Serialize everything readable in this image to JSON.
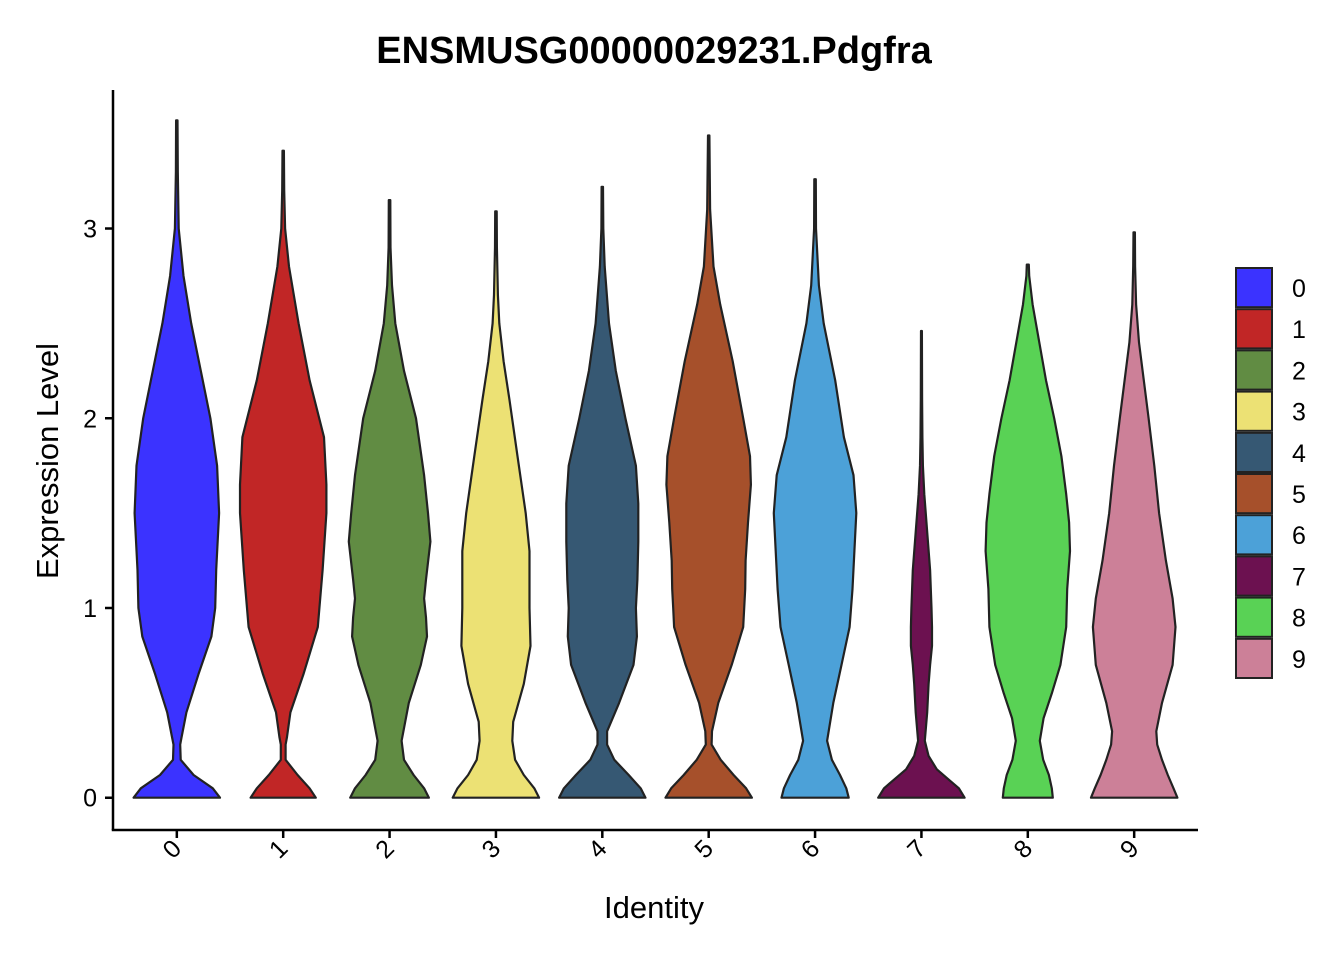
{
  "chart_data": {
    "type": "violin",
    "title": "ENSMUSG00000029231.Pdgfra",
    "xlabel": "Identity",
    "ylabel": "Expression Level",
    "ylim": [
      -0.17,
      3.73
    ],
    "yticks": [
      0,
      1,
      2,
      3
    ],
    "categories": [
      "0",
      "1",
      "2",
      "3",
      "4",
      "5",
      "6",
      "7",
      "8",
      "9"
    ],
    "colors": [
      "#3B33FF",
      "#C12626",
      "#618C43",
      "#ECE174",
      "#365873",
      "#A6502B",
      "#4CA1D8",
      "#6C1150",
      "#59D255",
      "#CC8098"
    ],
    "legend": {
      "title": "",
      "position": "right",
      "entries": [
        "0",
        "1",
        "2",
        "3",
        "4",
        "5",
        "6",
        "7",
        "8",
        "9"
      ]
    },
    "grid": false,
    "series": [
      {
        "max": 3.57,
        "profile": [
          [
            0,
            0.9
          ],
          [
            0.05,
            0.75
          ],
          [
            0.12,
            0.35
          ],
          [
            0.2,
            0.08
          ],
          [
            0.28,
            0.07
          ],
          [
            0.32,
            0.1
          ],
          [
            0.45,
            0.2
          ],
          [
            0.65,
            0.45
          ],
          [
            0.85,
            0.72
          ],
          [
            1.0,
            0.8
          ],
          [
            1.2,
            0.82
          ],
          [
            1.5,
            0.88
          ],
          [
            1.75,
            0.84
          ],
          [
            2.0,
            0.7
          ],
          [
            2.25,
            0.5
          ],
          [
            2.5,
            0.3
          ],
          [
            2.75,
            0.14
          ],
          [
            3.0,
            0.04
          ],
          [
            3.3,
            0.02
          ],
          [
            3.57,
            0.015
          ]
        ]
      },
      {
        "max": 3.41,
        "profile": [
          [
            0,
            0.68
          ],
          [
            0.05,
            0.55
          ],
          [
            0.12,
            0.3
          ],
          [
            0.2,
            0.05
          ],
          [
            0.28,
            0.05
          ],
          [
            0.32,
            0.08
          ],
          [
            0.45,
            0.15
          ],
          [
            0.65,
            0.42
          ],
          [
            0.9,
            0.72
          ],
          [
            1.2,
            0.82
          ],
          [
            1.5,
            0.9
          ],
          [
            1.65,
            0.9
          ],
          [
            1.9,
            0.85
          ],
          [
            2.2,
            0.55
          ],
          [
            2.5,
            0.32
          ],
          [
            2.8,
            0.12
          ],
          [
            3.0,
            0.04
          ],
          [
            3.2,
            0.02
          ],
          [
            3.41,
            0.015
          ]
        ]
      },
      {
        "max": 3.15,
        "profile": [
          [
            0,
            0.82
          ],
          [
            0.05,
            0.72
          ],
          [
            0.12,
            0.5
          ],
          [
            0.2,
            0.3
          ],
          [
            0.3,
            0.25
          ],
          [
            0.5,
            0.4
          ],
          [
            0.7,
            0.65
          ],
          [
            0.85,
            0.78
          ],
          [
            0.95,
            0.76
          ],
          [
            1.05,
            0.72
          ],
          [
            1.15,
            0.76
          ],
          [
            1.35,
            0.85
          ],
          [
            1.5,
            0.8
          ],
          [
            1.7,
            0.72
          ],
          [
            2.0,
            0.55
          ],
          [
            2.25,
            0.3
          ],
          [
            2.5,
            0.12
          ],
          [
            2.7,
            0.05
          ],
          [
            2.9,
            0.02
          ],
          [
            3.15,
            0.015
          ]
        ]
      },
      {
        "max": 3.09,
        "profile": [
          [
            0,
            0.9
          ],
          [
            0.05,
            0.8
          ],
          [
            0.12,
            0.58
          ],
          [
            0.2,
            0.4
          ],
          [
            0.3,
            0.34
          ],
          [
            0.4,
            0.36
          ],
          [
            0.6,
            0.58
          ],
          [
            0.8,
            0.72
          ],
          [
            1.0,
            0.7
          ],
          [
            1.3,
            0.7
          ],
          [
            1.5,
            0.62
          ],
          [
            1.8,
            0.45
          ],
          [
            2.1,
            0.28
          ],
          [
            2.3,
            0.16
          ],
          [
            2.5,
            0.07
          ],
          [
            2.65,
            0.04
          ],
          [
            2.9,
            0.02
          ],
          [
            3.09,
            0.015
          ]
        ]
      },
      {
        "max": 3.22,
        "profile": [
          [
            0,
            0.9
          ],
          [
            0.05,
            0.8
          ],
          [
            0.12,
            0.55
          ],
          [
            0.2,
            0.25
          ],
          [
            0.28,
            0.1
          ],
          [
            0.35,
            0.1
          ],
          [
            0.5,
            0.35
          ],
          [
            0.7,
            0.65
          ],
          [
            0.85,
            0.72
          ],
          [
            1.0,
            0.7
          ],
          [
            1.15,
            0.73
          ],
          [
            1.35,
            0.75
          ],
          [
            1.55,
            0.75
          ],
          [
            1.75,
            0.7
          ],
          [
            2.0,
            0.48
          ],
          [
            2.25,
            0.28
          ],
          [
            2.5,
            0.14
          ],
          [
            2.8,
            0.05
          ],
          [
            3.0,
            0.02
          ],
          [
            3.22,
            0.015
          ]
        ]
      },
      {
        "max": 3.49,
        "profile": [
          [
            0,
            0.9
          ],
          [
            0.05,
            0.78
          ],
          [
            0.12,
            0.52
          ],
          [
            0.2,
            0.25
          ],
          [
            0.28,
            0.06
          ],
          [
            0.35,
            0.07
          ],
          [
            0.5,
            0.2
          ],
          [
            0.7,
            0.48
          ],
          [
            0.9,
            0.72
          ],
          [
            1.0,
            0.74
          ],
          [
            1.1,
            0.76
          ],
          [
            1.25,
            0.77
          ],
          [
            1.45,
            0.82
          ],
          [
            1.65,
            0.88
          ],
          [
            1.8,
            0.86
          ],
          [
            2.0,
            0.72
          ],
          [
            2.3,
            0.5
          ],
          [
            2.6,
            0.24
          ],
          [
            2.8,
            0.1
          ],
          [
            3.1,
            0.03
          ],
          [
            3.49,
            0.015
          ]
        ]
      },
      {
        "max": 3.26,
        "profile": [
          [
            0,
            0.7
          ],
          [
            0.05,
            0.65
          ],
          [
            0.12,
            0.52
          ],
          [
            0.2,
            0.35
          ],
          [
            0.3,
            0.25
          ],
          [
            0.5,
            0.38
          ],
          [
            0.7,
            0.55
          ],
          [
            0.9,
            0.72
          ],
          [
            1.1,
            0.78
          ],
          [
            1.3,
            0.82
          ],
          [
            1.5,
            0.86
          ],
          [
            1.7,
            0.8
          ],
          [
            1.9,
            0.6
          ],
          [
            2.2,
            0.42
          ],
          [
            2.5,
            0.18
          ],
          [
            2.7,
            0.08
          ],
          [
            3.0,
            0.02
          ],
          [
            3.26,
            0.015
          ]
        ]
      },
      {
        "max": 2.46,
        "profile": [
          [
            0,
            0.9
          ],
          [
            0.05,
            0.78
          ],
          [
            0.1,
            0.55
          ],
          [
            0.15,
            0.32
          ],
          [
            0.22,
            0.15
          ],
          [
            0.3,
            0.07
          ],
          [
            0.45,
            0.12
          ],
          [
            0.6,
            0.15
          ],
          [
            0.7,
            0.18
          ],
          [
            0.8,
            0.22
          ],
          [
            0.9,
            0.22
          ],
          [
            1.0,
            0.21
          ],
          [
            1.2,
            0.18
          ],
          [
            1.4,
            0.12
          ],
          [
            1.6,
            0.06
          ],
          [
            1.75,
            0.03
          ],
          [
            1.9,
            0.02
          ],
          [
            2.1,
            0.014
          ],
          [
            2.46,
            0.01
          ]
        ]
      },
      {
        "max": 2.81,
        "profile": [
          [
            0,
            0.52
          ],
          [
            0.05,
            0.5
          ],
          [
            0.12,
            0.44
          ],
          [
            0.2,
            0.32
          ],
          [
            0.3,
            0.25
          ],
          [
            0.42,
            0.33
          ],
          [
            0.55,
            0.5
          ],
          [
            0.7,
            0.68
          ],
          [
            0.9,
            0.8
          ],
          [
            1.1,
            0.82
          ],
          [
            1.3,
            0.88
          ],
          [
            1.45,
            0.86
          ],
          [
            1.6,
            0.8
          ],
          [
            1.8,
            0.7
          ],
          [
            2.0,
            0.55
          ],
          [
            2.2,
            0.38
          ],
          [
            2.4,
            0.24
          ],
          [
            2.6,
            0.1
          ],
          [
            2.75,
            0.03
          ],
          [
            2.81,
            0.02
          ]
        ]
      },
      {
        "max": 2.98,
        "profile": [
          [
            0,
            0.9
          ],
          [
            0.05,
            0.82
          ],
          [
            0.12,
            0.7
          ],
          [
            0.2,
            0.58
          ],
          [
            0.28,
            0.48
          ],
          [
            0.35,
            0.46
          ],
          [
            0.5,
            0.58
          ],
          [
            0.7,
            0.8
          ],
          [
            0.9,
            0.86
          ],
          [
            1.05,
            0.8
          ],
          [
            1.25,
            0.66
          ],
          [
            1.5,
            0.52
          ],
          [
            1.75,
            0.42
          ],
          [
            2.0,
            0.3
          ],
          [
            2.2,
            0.2
          ],
          [
            2.4,
            0.1
          ],
          [
            2.6,
            0.04
          ],
          [
            2.8,
            0.02
          ],
          [
            2.98,
            0.015
          ]
        ]
      }
    ]
  }
}
